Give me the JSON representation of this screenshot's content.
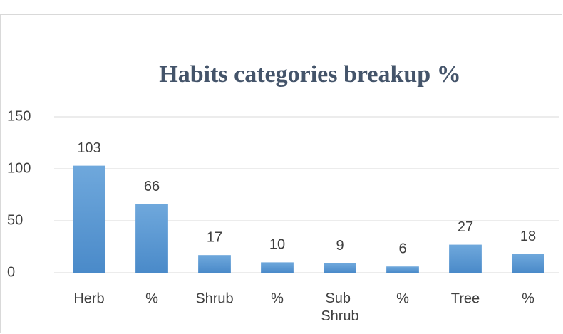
{
  "chart_data": {
    "type": "bar",
    "title": "Habits categories breakup %",
    "categories": [
      "Herb",
      "%",
      "Shrub",
      "%",
      "Sub Shrub",
      "%",
      "Tree",
      "%"
    ],
    "values": [
      103,
      66,
      17,
      10,
      9,
      6,
      27,
      18
    ],
    "color": "#5b9bd5",
    "ylim": [
      0,
      150
    ],
    "yticks": [
      0,
      50,
      100,
      150
    ],
    "grid": true
  }
}
